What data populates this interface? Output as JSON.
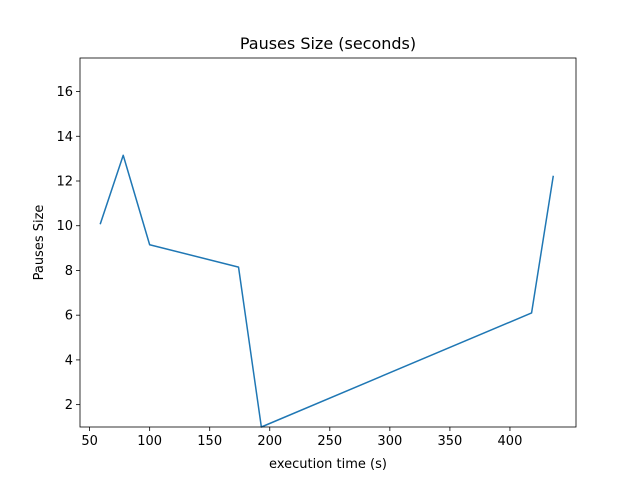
{
  "chart_data": {
    "type": "line",
    "title": "Pauses Size (seconds)",
    "xlabel": "execution time (s)",
    "ylabel": "Pauses Size",
    "xlim": [
      42,
      455
    ],
    "ylim": [
      1.0,
      17.5
    ],
    "xticks": [
      50,
      100,
      150,
      200,
      250,
      300,
      350,
      400
    ],
    "yticks": [
      2,
      4,
      6,
      8,
      10,
      12,
      14,
      16
    ],
    "grid": false,
    "series": [
      {
        "color": "#1f77b4",
        "x": [
          59,
          78,
          100,
          174,
          193,
          418,
          436
        ],
        "y": [
          10.1,
          13.15,
          9.15,
          8.15,
          1.0,
          6.1,
          12.2
        ]
      }
    ]
  }
}
